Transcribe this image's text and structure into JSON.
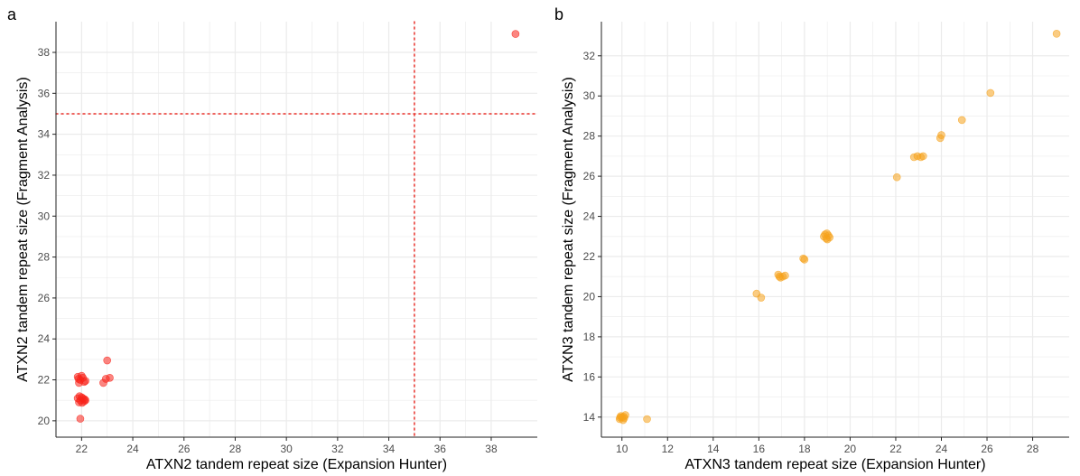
{
  "colors": {
    "red": "#f8231a",
    "orange": "#f5a21b",
    "grid": "#ebebeb",
    "axis": "#222222",
    "ref_line": "#e8322b"
  },
  "chart_data": [
    {
      "type": "scatter",
      "panel": "a",
      "xlabel": "ATXN2 tandem repeat size (Expansion Hunter)",
      "ylabel": "ATXN2 tandem repeat size (Fragment Analysis)",
      "xlim": [
        21.0,
        39.8
      ],
      "ylim": [
        19.2,
        39.5
      ],
      "xticks": [
        22,
        24,
        26,
        28,
        30,
        32,
        34,
        36,
        38
      ],
      "yticks": [
        20,
        22,
        24,
        26,
        28,
        30,
        32,
        34,
        36,
        38
      ],
      "grid": true,
      "reference_lines": {
        "vertical_x": 35,
        "horizontal_y": 35
      },
      "color": "#f8231a",
      "points": [
        {
          "x": 21.85,
          "y": 22.15
        },
        {
          "x": 21.95,
          "y": 22.0
        },
        {
          "x": 22.05,
          "y": 22.1
        },
        {
          "x": 22.15,
          "y": 21.95
        },
        {
          "x": 21.9,
          "y": 21.85
        },
        {
          "x": 22.1,
          "y": 21.9
        },
        {
          "x": 22.0,
          "y": 22.2
        },
        {
          "x": 21.88,
          "y": 22.05
        },
        {
          "x": 21.85,
          "y": 21.1
        },
        {
          "x": 21.95,
          "y": 21.0
        },
        {
          "x": 22.05,
          "y": 21.1
        },
        {
          "x": 22.15,
          "y": 21.0
        },
        {
          "x": 21.9,
          "y": 20.9
        },
        {
          "x": 22.1,
          "y": 20.95
        },
        {
          "x": 22.0,
          "y": 21.15
        },
        {
          "x": 22.12,
          "y": 21.05
        },
        {
          "x": 21.92,
          "y": 21.2
        },
        {
          "x": 22.02,
          "y": 20.88
        },
        {
          "x": 21.95,
          "y": 20.1
        },
        {
          "x": 22.85,
          "y": 21.85
        },
        {
          "x": 22.95,
          "y": 22.05
        },
        {
          "x": 23.1,
          "y": 22.1
        },
        {
          "x": 23.0,
          "y": 22.95
        },
        {
          "x": 38.95,
          "y": 38.9
        }
      ]
    },
    {
      "type": "scatter",
      "panel": "b",
      "xlabel": "ATXN3 tandem repeat size (Expansion Hunter)",
      "ylabel": "ATXN3 tandem repeat size (Fragment Analysis)",
      "xlim": [
        9.1,
        29.6
      ],
      "ylim": [
        13.0,
        33.7
      ],
      "xticks": [
        10,
        12,
        14,
        16,
        18,
        20,
        22,
        24,
        26,
        28
      ],
      "yticks": [
        14,
        16,
        18,
        20,
        22,
        24,
        26,
        28,
        30,
        32
      ],
      "grid": true,
      "color": "#f5a21b",
      "points": [
        {
          "x": 9.9,
          "y": 13.9
        },
        {
          "x": 10.0,
          "y": 14.0
        },
        {
          "x": 10.1,
          "y": 13.95
        },
        {
          "x": 9.95,
          "y": 14.05
        },
        {
          "x": 10.05,
          "y": 13.85
        },
        {
          "x": 10.15,
          "y": 14.1
        },
        {
          "x": 9.92,
          "y": 13.98
        },
        {
          "x": 10.08,
          "y": 14.02
        },
        {
          "x": 11.1,
          "y": 13.9
        },
        {
          "x": 15.9,
          "y": 20.15
        },
        {
          "x": 16.1,
          "y": 19.95
        },
        {
          "x": 16.85,
          "y": 21.1
        },
        {
          "x": 16.95,
          "y": 20.95
        },
        {
          "x": 17.05,
          "y": 21.0
        },
        {
          "x": 17.15,
          "y": 21.05
        },
        {
          "x": 16.9,
          "y": 21.0
        },
        {
          "x": 17.95,
          "y": 21.9
        },
        {
          "x": 18.0,
          "y": 21.85
        },
        {
          "x": 18.85,
          "y": 23.0
        },
        {
          "x": 18.95,
          "y": 22.9
        },
        {
          "x": 19.05,
          "y": 23.05
        },
        {
          "x": 19.1,
          "y": 22.95
        },
        {
          "x": 18.9,
          "y": 23.1
        },
        {
          "x": 19.0,
          "y": 22.85
        },
        {
          "x": 18.98,
          "y": 23.15
        },
        {
          "x": 22.05,
          "y": 25.95
        },
        {
          "x": 22.8,
          "y": 26.95
        },
        {
          "x": 22.95,
          "y": 27.0
        },
        {
          "x": 23.1,
          "y": 26.95
        },
        {
          "x": 23.2,
          "y": 27.0
        },
        {
          "x": 23.95,
          "y": 27.9
        },
        {
          "x": 24.0,
          "y": 28.05
        },
        {
          "x": 24.9,
          "y": 28.8
        },
        {
          "x": 26.15,
          "y": 30.15
        },
        {
          "x": 29.05,
          "y": 33.1
        }
      ]
    }
  ],
  "labels": {
    "panel_a": "a",
    "panel_b": "b"
  }
}
